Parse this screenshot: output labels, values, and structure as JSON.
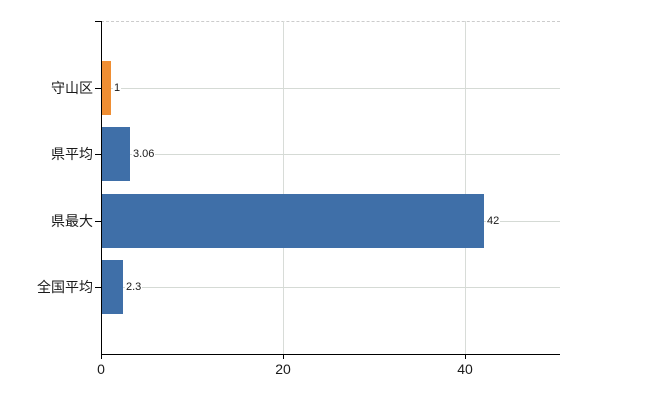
{
  "chart_data": {
    "type": "bar",
    "orientation": "horizontal",
    "categories": [
      "守山区",
      "県平均",
      "県最大",
      "全国平均"
    ],
    "values": [
      1,
      3.06,
      42,
      2.3
    ],
    "value_labels": [
      "1",
      "3.06",
      "42",
      "2.3"
    ],
    "bar_colors": [
      "#ef8e33",
      "#3f6fa8",
      "#3f6fa8",
      "#3f6fa8"
    ],
    "x_ticks": [
      {
        "value": 0,
        "label": "0"
      },
      {
        "value": 20,
        "label": "20"
      },
      {
        "value": 40,
        "label": "40"
      }
    ],
    "xlim": [
      0,
      50.4
    ],
    "grid": true,
    "legend_position": "none"
  },
  "colors": {
    "bar_default": "#3f6fa8",
    "bar_highlight": "#ef8e33",
    "gridline": "#d5dad5",
    "axis": "#000000",
    "text": "#1a1a1a"
  }
}
